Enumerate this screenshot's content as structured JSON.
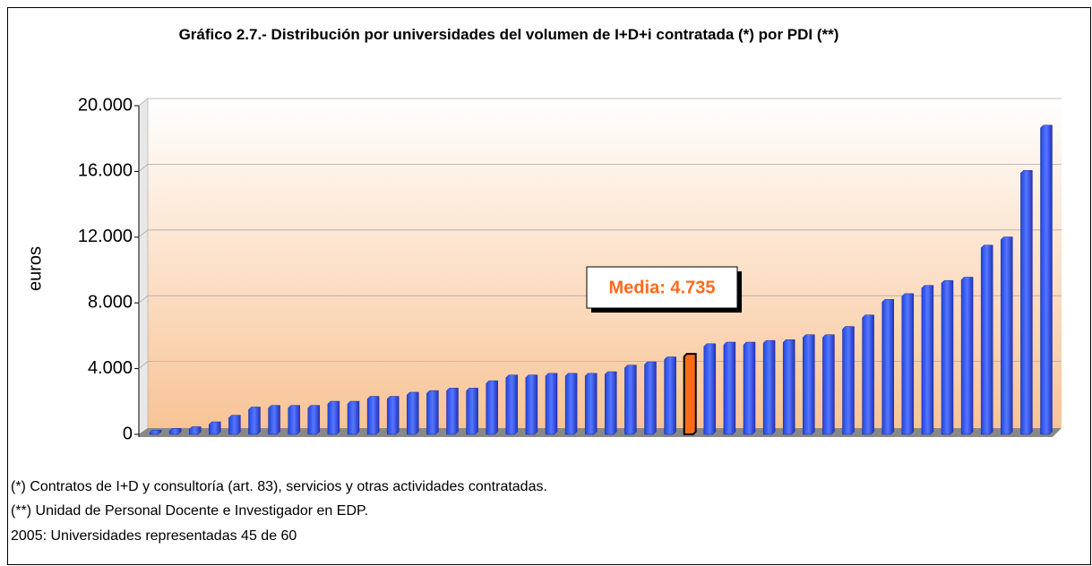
{
  "chart_data": {
    "type": "bar",
    "title": "Gráfico 2.7.- Distribución por universidades del volumen de I+D+i contratada (*) por PDI (**)",
    "y_label": "euros",
    "annotation": "Media: 4.735",
    "values": [
      100,
      200,
      300,
      600,
      1000,
      1500,
      1600,
      1600,
      1600,
      1850,
      1850,
      2150,
      2150,
      2400,
      2500,
      2650,
      2650,
      3100,
      3450,
      3450,
      3550,
      3550,
      3550,
      3650,
      4050,
      4250,
      4550,
      4735,
      5350,
      5450,
      5450,
      5550,
      5600,
      5900,
      5900,
      6400,
      7100,
      8050,
      8400,
      8900,
      9200,
      9400,
      11350,
      11850,
      15900,
      18650
    ],
    "colors": [
      "#3355ee",
      "#3355ee",
      "#3355ee",
      "#3355ee",
      "#3355ee",
      "#3355ee",
      "#3355ee",
      "#3355ee",
      "#3355ee",
      "#3355ee",
      "#3355ee",
      "#3355ee",
      "#3355ee",
      "#3355ee",
      "#3355ee",
      "#3355ee",
      "#3355ee",
      "#3355ee",
      "#3355ee",
      "#3355ee",
      "#3355ee",
      "#3355ee",
      "#3355ee",
      "#3355ee",
      "#3355ee",
      "#3355ee",
      "#3355ee",
      "#ff6a1a",
      "#3355ee",
      "#3355ee",
      "#3355ee",
      "#3355ee",
      "#3355ee",
      "#3355ee",
      "#3355ee",
      "#3355ee",
      "#3355ee",
      "#3355ee",
      "#3355ee",
      "#3355ee",
      "#3355ee",
      "#3355ee",
      "#3355ee",
      "#3355ee",
      "#3355ee",
      "#3355ee"
    ],
    "ylim": [
      0,
      20000
    ],
    "yticks": [
      0,
      {
        "value": 4000,
        "label": "4.000"
      },
      {
        "value": 8000,
        "label": "8.000"
      },
      {
        "value": 12000,
        "label": "12.000"
      },
      {
        "value": 16000,
        "label": "16.000"
      },
      {
        "value": 20000,
        "label": "20.000"
      }
    ],
    "grid": true,
    "notes": [
      "(*) Contratos de I+D y consultoría (art. 83), servicios y otras actividades contratadas.",
      "(**) Unidad de Personal Docente e Investigador en EDP.",
      "2005: Universidades representadas 45 de 60"
    ]
  }
}
